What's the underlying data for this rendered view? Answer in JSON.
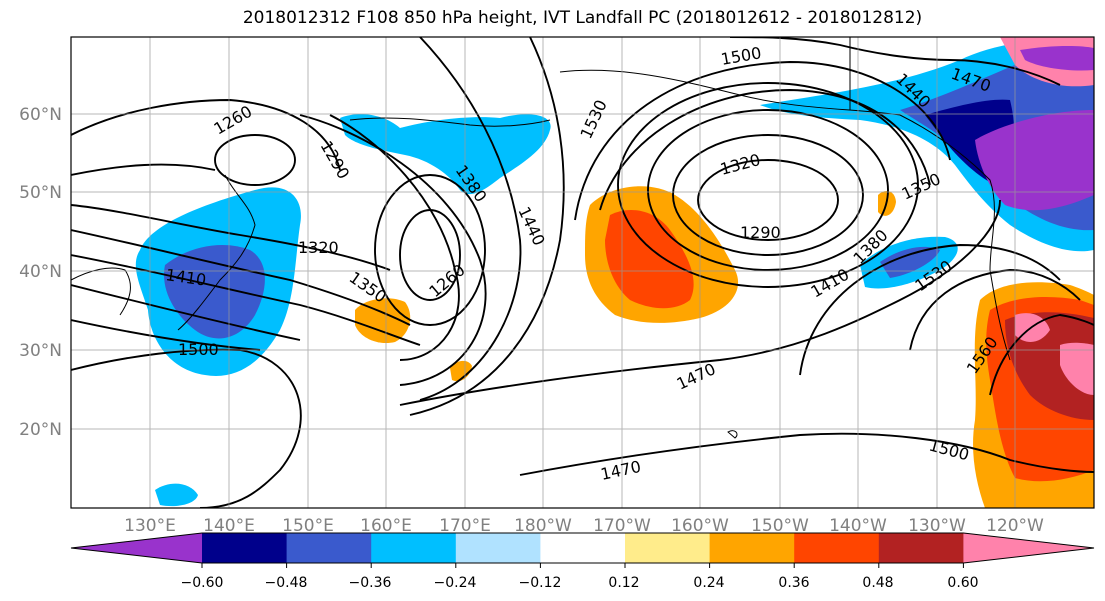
{
  "title": "2018012312 F108 850 hPa height, IVT Landfall PC (2018012612 - 2018012812)",
  "lat_labels": [
    "60°N",
    "50°N",
    "40°N",
    "30°N",
    "20°N"
  ],
  "lon_labels": [
    "130°E",
    "140°E",
    "150°E",
    "160°E",
    "170°E",
    "180°W",
    "170°W",
    "160°W",
    "150°W",
    "140°W",
    "130°W",
    "120°W"
  ],
  "contour_labels": [
    "1260",
    "1290",
    "1380",
    "1440",
    "1530",
    "1500",
    "1470",
    "1440",
    "1320",
    "1290",
    "1350",
    "1380",
    "1410",
    "1530",
    "1560",
    "1320",
    "1410",
    "1350",
    "1260",
    "1500",
    "1470",
    "1470",
    "1500"
  ],
  "colorbar": {
    "ticks": [
      "−0.60",
      "−0.48",
      "−0.36",
      "−0.24",
      "−0.12",
      "0.12",
      "0.24",
      "0.36",
      "0.48",
      "0.60"
    ],
    "colors": [
      "#9933cc",
      "#00008b",
      "#3a5acd",
      "#00bfff",
      "#b0e2ff",
      "#ffffff",
      "#ffec8b",
      "#ffa500",
      "#ff4500",
      "#b22222",
      "#ff82ab"
    ]
  }
}
